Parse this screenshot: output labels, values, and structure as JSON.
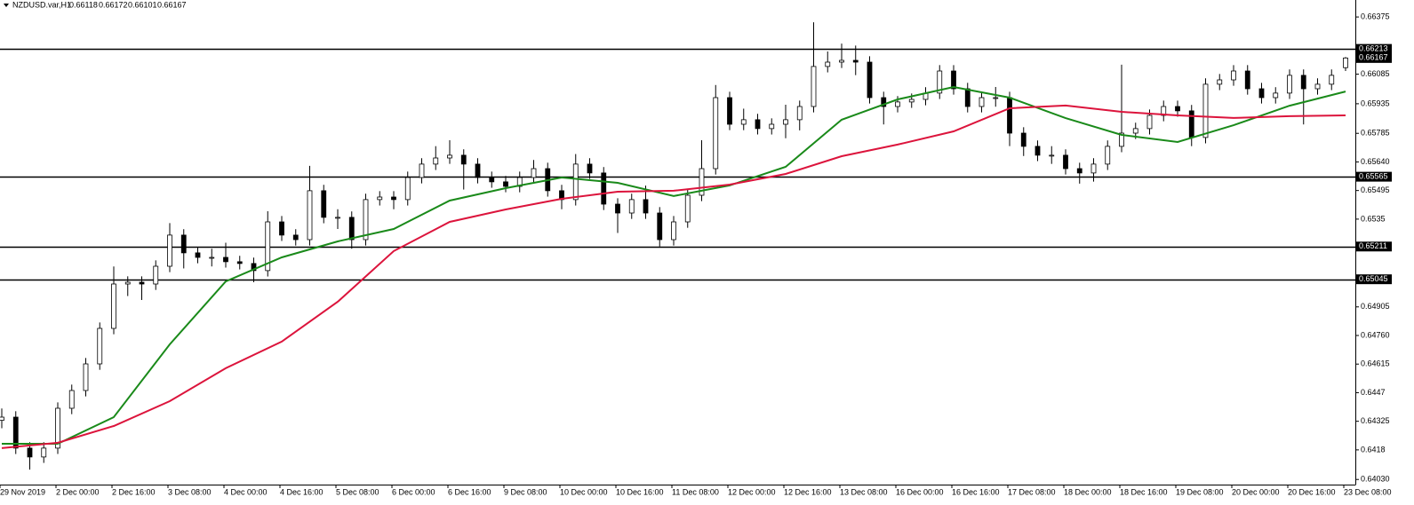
{
  "chart_data": {
    "type": "candlestick",
    "symbol": "NZDUSD.var,H1",
    "open": [
      0.6433,
      0.64346,
      0.64189,
      0.64144,
      0.64189,
      0.64391,
      0.64481,
      0.64616,
      0.64796,
      0.65021,
      0.6503,
      0.65021,
      0.65111,
      0.65269,
      0.65179,
      0.65156,
      0.65156,
      0.65134,
      0.65125,
      0.65089,
      0.65336,
      0.65269,
      0.65246,
      0.65494,
      0.65359,
      0.65359,
      0.65246,
      0.65449,
      0.65462,
      0.65449,
      0.65561,
      0.65629,
      0.6566,
      0.65674,
      0.65629,
      0.65561,
      0.65539,
      0.65516,
      0.65561,
      0.65606,
      0.65494,
      0.65449,
      0.65629,
      0.65584,
      0.65426,
      0.65381,
      0.65449,
      0.65381,
      0.65246,
      0.65336,
      0.65471,
      0.65606,
      0.65966,
      0.65831,
      0.65854,
      0.65809,
      0.65831,
      0.65854,
      0.65921,
      0.66124,
      0.66146,
      0.66155,
      0.66146,
      0.65966,
      0.65921,
      0.65944,
      0.65957,
      0.65989,
      0.66101,
      0.66011,
      0.65921,
      0.65966,
      0.65966,
      0.65786,
      0.65719,
      0.65674,
      0.65674,
      0.65606,
      0.65584,
      0.65629,
      0.65719,
      0.65786,
      0.65809,
      0.65876,
      0.65921,
      0.65899,
      0.65764,
      0.66034,
      0.66056,
      0.66101,
      0.66011,
      0.65966,
      0.65989,
      0.66079,
      0.66011,
      0.66034,
      0.66118
    ],
    "high": [
      0.6439,
      0.64376,
      0.64219,
      0.64219,
      0.64421,
      0.64511,
      0.64646,
      0.64826,
      0.6511,
      0.6506,
      0.6506,
      0.65141,
      0.6533,
      0.65299,
      0.65209,
      0.652,
      0.6523,
      0.65164,
      0.65155,
      0.6539,
      0.65366,
      0.65299,
      0.6562,
      0.65524,
      0.654,
      0.65389,
      0.65479,
      0.65492,
      0.65492,
      0.65591,
      0.65659,
      0.6572,
      0.6575,
      0.65704,
      0.65659,
      0.65591,
      0.65569,
      0.65591,
      0.6565,
      0.65636,
      0.65524,
      0.6568,
      0.65659,
      0.65614,
      0.65456,
      0.65479,
      0.6552,
      0.65411,
      0.65366,
      0.65501,
      0.6575,
      0.6603,
      0.65996,
      0.6591,
      0.65884,
      0.65861,
      0.6593,
      0.65951,
      0.66348,
      0.662,
      0.6624,
      0.6623,
      0.66176,
      0.65996,
      0.65974,
      0.65987,
      0.66019,
      0.66131,
      0.66131,
      0.66041,
      0.65996,
      0.6602,
      0.65996,
      0.65816,
      0.65749,
      0.6572,
      0.65704,
      0.65636,
      0.65659,
      0.65749,
      0.66133,
      0.65839,
      0.65906,
      0.65951,
      0.65951,
      0.65929,
      0.66064,
      0.66086,
      0.66131,
      0.66131,
      0.66041,
      0.66019,
      0.66109,
      0.66109,
      0.66064,
      0.66109,
      0.66172
    ],
    "low": [
      0.6429,
      0.64159,
      0.6408,
      0.64114,
      0.64159,
      0.64361,
      0.64451,
      0.64586,
      0.64766,
      0.6496,
      0.6494,
      0.64991,
      0.65081,
      0.651,
      0.65126,
      0.6511,
      0.65104,
      0.65095,
      0.6503,
      0.65059,
      0.65239,
      0.65216,
      0.65216,
      0.65329,
      0.653,
      0.652,
      0.65216,
      0.65419,
      0.654,
      0.65419,
      0.65531,
      0.65599,
      0.6563,
      0.655,
      0.65531,
      0.65509,
      0.65486,
      0.65486,
      0.65531,
      0.65464,
      0.654,
      0.65419,
      0.65554,
      0.65396,
      0.6528,
      0.65351,
      0.65351,
      0.65211,
      0.65216,
      0.65306,
      0.65441,
      0.65576,
      0.65801,
      0.65801,
      0.65779,
      0.65779,
      0.6576,
      0.658,
      0.65891,
      0.66094,
      0.66116,
      0.6608,
      0.65936,
      0.6583,
      0.65891,
      0.65914,
      0.65927,
      0.65959,
      0.65981,
      0.65891,
      0.65891,
      0.6592,
      0.6572,
      0.6567,
      0.65644,
      0.6563,
      0.65576,
      0.6553,
      0.6554,
      0.65599,
      0.65689,
      0.65756,
      0.65779,
      0.65846,
      0.65869,
      0.6572,
      0.65734,
      0.66004,
      0.66026,
      0.65981,
      0.65936,
      0.65936,
      0.65959,
      0.6583,
      0.65981,
      0.66004,
      0.66101
    ],
    "close": [
      0.64346,
      0.64189,
      0.64144,
      0.64189,
      0.64391,
      0.64481,
      0.64616,
      0.64796,
      0.65021,
      0.6503,
      0.65021,
      0.65111,
      0.65269,
      0.65179,
      0.65156,
      0.65156,
      0.65134,
      0.65125,
      0.65089,
      0.65336,
      0.65269,
      0.65246,
      0.65494,
      0.65359,
      0.65359,
      0.65246,
      0.65449,
      0.65462,
      0.65449,
      0.65561,
      0.65629,
      0.6566,
      0.65674,
      0.65629,
      0.65561,
      0.65539,
      0.65516,
      0.65561,
      0.65606,
      0.65494,
      0.65449,
      0.65629,
      0.65584,
      0.65426,
      0.65381,
      0.65449,
      0.65381,
      0.65246,
      0.65336,
      0.65471,
      0.65606,
      0.65966,
      0.65831,
      0.65854,
      0.65809,
      0.65831,
      0.65854,
      0.65921,
      0.66124,
      0.66146,
      0.66155,
      0.66146,
      0.65966,
      0.65921,
      0.65944,
      0.65957,
      0.65989,
      0.66101,
      0.66011,
      0.65921,
      0.65966,
      0.65966,
      0.65786,
      0.65719,
      0.65674,
      0.65674,
      0.65606,
      0.65584,
      0.65629,
      0.65719,
      0.65786,
      0.65809,
      0.65876,
      0.65921,
      0.65899,
      0.65764,
      0.66034,
      0.66056,
      0.66101,
      0.66011,
      0.65966,
      0.65989,
      0.66079,
      0.66011,
      0.66034,
      0.66079,
      0.66167
    ],
    "bull_color": "#ffffff",
    "bear_color": "#000000",
    "ma_x": [
      0,
      4,
      8,
      12,
      16,
      20,
      24,
      28,
      32,
      36,
      40,
      44,
      48,
      52,
      56,
      60,
      64,
      68,
      72,
      76,
      80,
      84,
      88,
      92,
      96
    ],
    "lines": [
      {
        "color": "#1a8a1a",
        "values": [
          0.64211,
          0.64211,
          0.64346,
          0.64715,
          0.65034,
          0.65156,
          0.65237,
          0.653,
          0.65444,
          0.65507,
          0.65561,
          0.65534,
          0.65467,
          0.65521,
          0.65615,
          0.65854,
          0.65957,
          0.6602,
          0.65966,
          0.65862,
          0.65777,
          0.65741,
          0.65826,
          0.65925,
          0.65997
        ]
      },
      {
        "color": "#dc143c",
        "values": [
          0.64189,
          0.64216,
          0.64301,
          0.64427,
          0.64594,
          0.64729,
          0.64931,
          0.65188,
          0.65336,
          0.65399,
          0.65453,
          0.65489,
          0.65494,
          0.65525,
          0.65579,
          0.65669,
          0.65728,
          0.65795,
          0.65912,
          0.65926,
          0.65894,
          0.65876,
          0.65863,
          0.65872,
          0.65876
        ]
      }
    ],
    "levels": [
      0.66213,
      0.65565,
      0.65211,
      0.65045
    ],
    "level_color": "#000000",
    "ylim": [
      0.64004,
      0.66461
    ],
    "yticks": [
      0.66375,
      0.66085,
      0.65935,
      0.65785,
      {
        "value": 0.6564,
        "label": "0.65640"
      },
      0.65495,
      0.6535,
      0.64905,
      {
        "value": 0.6476,
        "label": "0.64760"
      },
      0.64615,
      0.6447,
      0.64325,
      0.6418,
      {
        "value": 0.6403,
        "label": "0.64030"
      }
    ],
    "x_labels": [
      "29 Nov 2019",
      "2 Dec 00:00",
      "2 Dec 16:00",
      "3 Dec 08:00",
      "4 Dec 00:00",
      "4 Dec 16:00",
      "5 Dec 08:00",
      "6 Dec 00:00",
      "6 Dec 16:00",
      "9 Dec 08:00",
      "10 Dec 00:00",
      "10 Dec 16:00",
      "11 Dec 08:00",
      "12 Dec 00:00",
      "12 Dec 16:00",
      "13 Dec 08:00",
      "16 Dec 00:00",
      "16 Dec 16:00",
      "17 Dec 08:00",
      "18 Dec 00:00",
      "18 Dec 16:00",
      "19 Dec 08:00",
      "20 Dec 00:00",
      "20 Dec 16:00",
      "23 Dec 08:00"
    ]
  }
}
